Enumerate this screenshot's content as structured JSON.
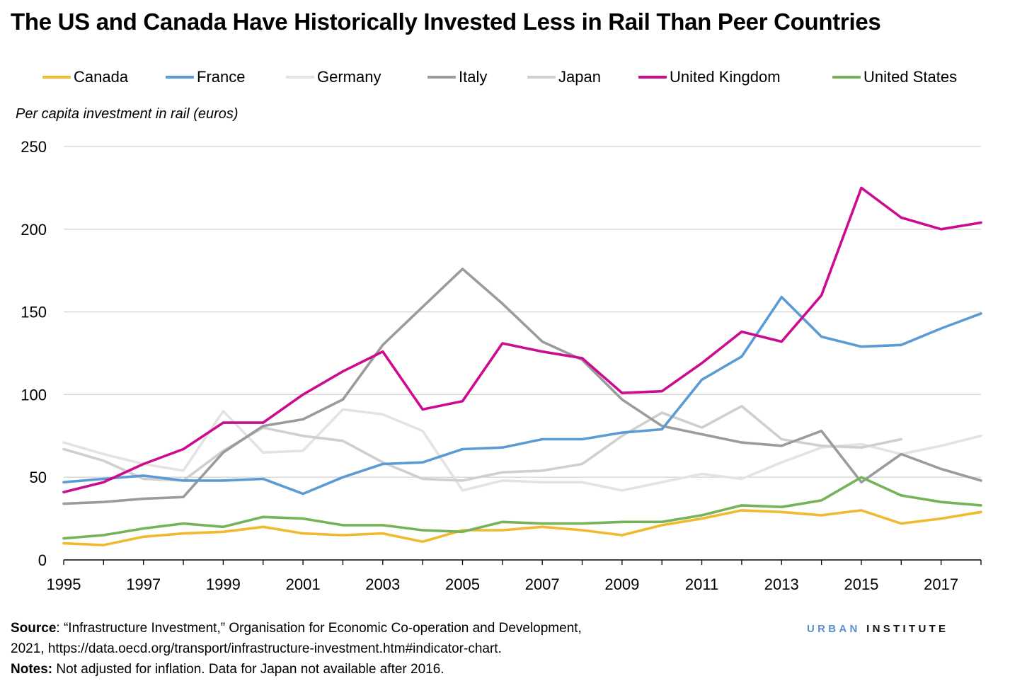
{
  "title": "The US and Canada Have Historically Invested Less in Rail Than Peer Countries",
  "source_label": "Source",
  "source_text": ": “Infrastructure Investment,” Organisation for Economic Co-operation and Development,",
  "source_text_2": "2021, https://data.oecd.org/transport/infrastructure-investment.htm#indicator-chart.",
  "notes_label": "Notes:",
  "notes_text": " Not adjusted for inflation. Data for Japan not available after 2016.",
  "brand_part1": "URBAN",
  "brand_part2": "INSTITUTE",
  "chart_data": {
    "type": "line",
    "title": "The US and Canada Have Historically Invested Less in Rail Than Peer Countries",
    "ylabel": "Per capita investment in rail (euros)",
    "xlabel": "",
    "x": [
      1995,
      1996,
      1997,
      1998,
      1999,
      2000,
      2001,
      2002,
      2003,
      2004,
      2005,
      2006,
      2007,
      2008,
      2009,
      2010,
      2011,
      2012,
      2013,
      2014,
      2015,
      2016,
      2017,
      2018
    ],
    "xticks": [
      "1995",
      "1997",
      "1999",
      "2001",
      "2003",
      "2005",
      "2007",
      "2009",
      "2011",
      "2013",
      "2015",
      "2017"
    ],
    "ylim": [
      0,
      250
    ],
    "yticks": [
      "0",
      "50",
      "100",
      "150",
      "200",
      "250"
    ],
    "grid": "horizontal",
    "legend_position": "top",
    "series": [
      {
        "name": "Canada",
        "color": "#f0b92e",
        "values": [
          10,
          9,
          14,
          16,
          17,
          20,
          16,
          15,
          16,
          11,
          18,
          18,
          20,
          18,
          15,
          21,
          25,
          30,
          29,
          27,
          30,
          22,
          25,
          29
        ]
      },
      {
        "name": "France",
        "color": "#5b9bd5",
        "values": [
          47,
          49,
          51,
          48,
          48,
          49,
          40,
          50,
          58,
          59,
          67,
          68,
          73,
          73,
          77,
          79,
          109,
          123,
          159,
          135,
          129,
          130,
          140,
          149
        ]
      },
      {
        "name": "Germany",
        "color": "#e3e3e3",
        "values": [
          71,
          64,
          58,
          54,
          90,
          65,
          66,
          91,
          88,
          78,
          42,
          48,
          47,
          47,
          42,
          47,
          52,
          49,
          59,
          68,
          70,
          64,
          69,
          75
        ]
      },
      {
        "name": "Italy",
        "color": "#9b9b9b",
        "values": [
          34,
          35,
          37,
          38,
          65,
          81,
          85,
          97,
          130,
          153,
          176,
          155,
          132,
          121,
          97,
          81,
          76,
          71,
          69,
          78,
          47,
          64,
          55,
          48
        ]
      },
      {
        "name": "Japan",
        "color": "#cfcfcf",
        "values": [
          67,
          60,
          49,
          48,
          66,
          80,
          75,
          72,
          59,
          49,
          48,
          53,
          54,
          58,
          75,
          89,
          80,
          93,
          73,
          69,
          68,
          73,
          null,
          null
        ]
      },
      {
        "name": "United Kingdom",
        "color": "#cc0b8f",
        "values": [
          41,
          47,
          58,
          67,
          83,
          83,
          100,
          114,
          126,
          91,
          96,
          131,
          126,
          122,
          101,
          102,
          119,
          138,
          132,
          160,
          225,
          207,
          200,
          204
        ]
      },
      {
        "name": "United States",
        "color": "#74b357",
        "values": [
          13,
          15,
          19,
          22,
          20,
          26,
          25,
          21,
          21,
          18,
          17,
          23,
          22,
          22,
          23,
          23,
          27,
          33,
          32,
          36,
          50,
          39,
          35,
          33
        ]
      }
    ]
  }
}
